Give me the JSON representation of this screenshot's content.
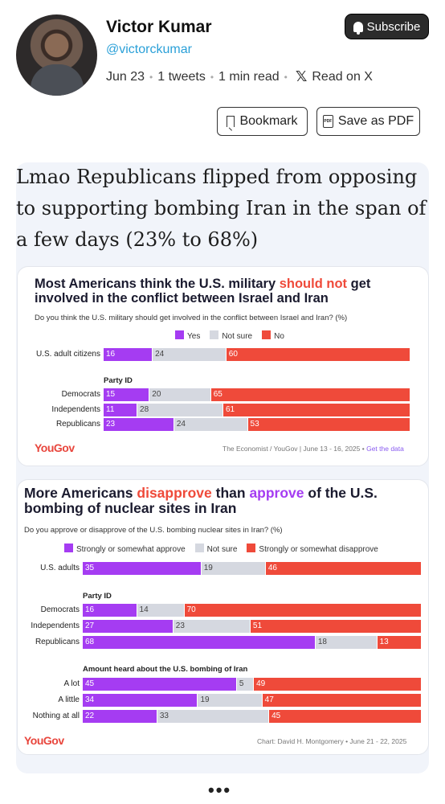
{
  "header": {
    "author_name": "Victor Kumar",
    "handle": "@victorckumar",
    "date": "Jun 23",
    "tweets": "1 tweets",
    "read_time": "1 min read",
    "read_on": "Read on X",
    "subscribe_label": "Subscribe",
    "bookmark_label": "Bookmark",
    "save_pdf_label": "Save as PDF",
    "pdf_icon_text": "PDF"
  },
  "post": {
    "text": "Lmao Republicans flipped from opposing to supporting bombing Iran in the span of a few days (23% to 68%)"
  },
  "chart1": {
    "title_a": "Most Americans think the U.S. military ",
    "title_highlight": "should not",
    "title_b": " get involved in the conflict between Israel and Iran",
    "subtitle": "Do you think the U.S. military should get involved in the conflict between Israel and Iran? (%)",
    "legend": [
      "Yes",
      "Not sure",
      "No"
    ],
    "section": "Party ID",
    "logo": "YouGov",
    "source": "The Economist / YouGov | June 13 - 16, 2025 • ",
    "source_link": "Get the data"
  },
  "chart2": {
    "title_a": "More Americans ",
    "title_red": "disapprove",
    "title_b": " than ",
    "title_purple": "approve",
    "title_c": " of the U.S. bombing of nuclear sites in Iran",
    "subtitle": "Do you approve or disapprove of the U.S. bombing nuclear sites in Iran? (%)",
    "legend": [
      "Strongly or somewhat approve",
      "Not sure",
      "Strongly or somewhat disapprove"
    ],
    "section1": "Party ID",
    "section2": "Amount heard about the U.S. bombing of Iran",
    "logo": "YouGov",
    "source": "Chart: David H. Montgomery • June 21 - 22, 2025"
  },
  "chart_data": [
    {
      "type": "bar",
      "stacked": true,
      "orientation": "horizontal",
      "categories": [
        "U.S. adult citizens",
        "Democrats",
        "Independents",
        "Republicans"
      ],
      "series": [
        {
          "name": "Yes",
          "values": [
            16,
            15,
            11,
            23
          ],
          "color": "#a53cf2"
        },
        {
          "name": "Not sure",
          "values": [
            24,
            20,
            28,
            24
          ],
          "color": "#d5d8e0"
        },
        {
          "name": "No",
          "values": [
            60,
            65,
            61,
            53
          ],
          "color": "#ef4a3a"
        }
      ]
    },
    {
      "type": "bar",
      "stacked": true,
      "orientation": "horizontal",
      "categories": [
        "U.S. adults",
        "Democrats",
        "Independents",
        "Republicans",
        "A lot",
        "A little",
        "Nothing at all"
      ],
      "series": [
        {
          "name": "Strongly or somewhat approve",
          "values": [
            35,
            16,
            27,
            68,
            45,
            34,
            22
          ],
          "color": "#a53cf2"
        },
        {
          "name": "Not sure",
          "values": [
            19,
            14,
            23,
            18,
            5,
            19,
            33
          ],
          "color": "#d5d8e0"
        },
        {
          "name": "Strongly or somewhat disapprove",
          "values": [
            46,
            70,
            51,
            13,
            49,
            47,
            45
          ],
          "color": "#ef4a3a"
        }
      ]
    }
  ]
}
